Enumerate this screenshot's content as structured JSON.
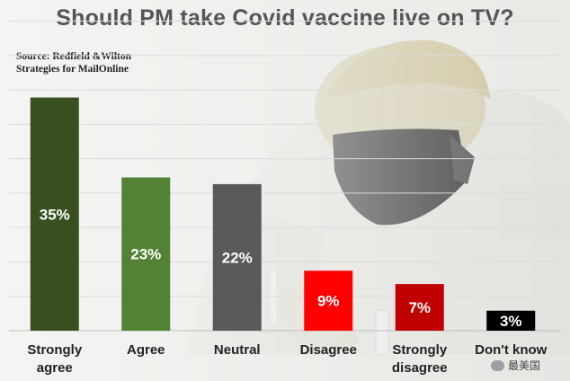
{
  "header": {
    "title": "Should PM take Covid vaccine live on TV?",
    "source": "Source: Redfield &Wilton\nStrategies for MailOnline"
  },
  "watermark": {
    "text": "最美国"
  },
  "colors": {
    "strongly_agree": "#38501f",
    "agree": "#548235",
    "neutral": "#595959",
    "disagree": "#ff0000",
    "strongly_disagree": "#c00000",
    "dont_know": "#000000",
    "gridline": "#dcdcdc"
  },
  "chart_data": {
    "type": "bar",
    "title": "Should PM take Covid vaccine live on TV?",
    "categories": [
      "Strongly agree",
      "Agree",
      "Neutral",
      "Disagree",
      "Strongly disagree",
      "Don't know"
    ],
    "category_lines": [
      [
        "Strongly",
        "agree"
      ],
      [
        "Agree"
      ],
      [
        "Neutral"
      ],
      [
        "Disagree"
      ],
      [
        "Strongly",
        "disagree"
      ],
      [
        "Don't know"
      ]
    ],
    "values": [
      35,
      23,
      22,
      9,
      7,
      3
    ],
    "data_labels": [
      "35%",
      "23%",
      "22%",
      "9%",
      "7%",
      "3%"
    ],
    "bar_colors": [
      "#38501f",
      "#548235",
      "#595959",
      "#ff0000",
      "#c00000",
      "#000000"
    ],
    "ylim": [
      0,
      37.5
    ],
    "grid": true,
    "legend": "none"
  }
}
